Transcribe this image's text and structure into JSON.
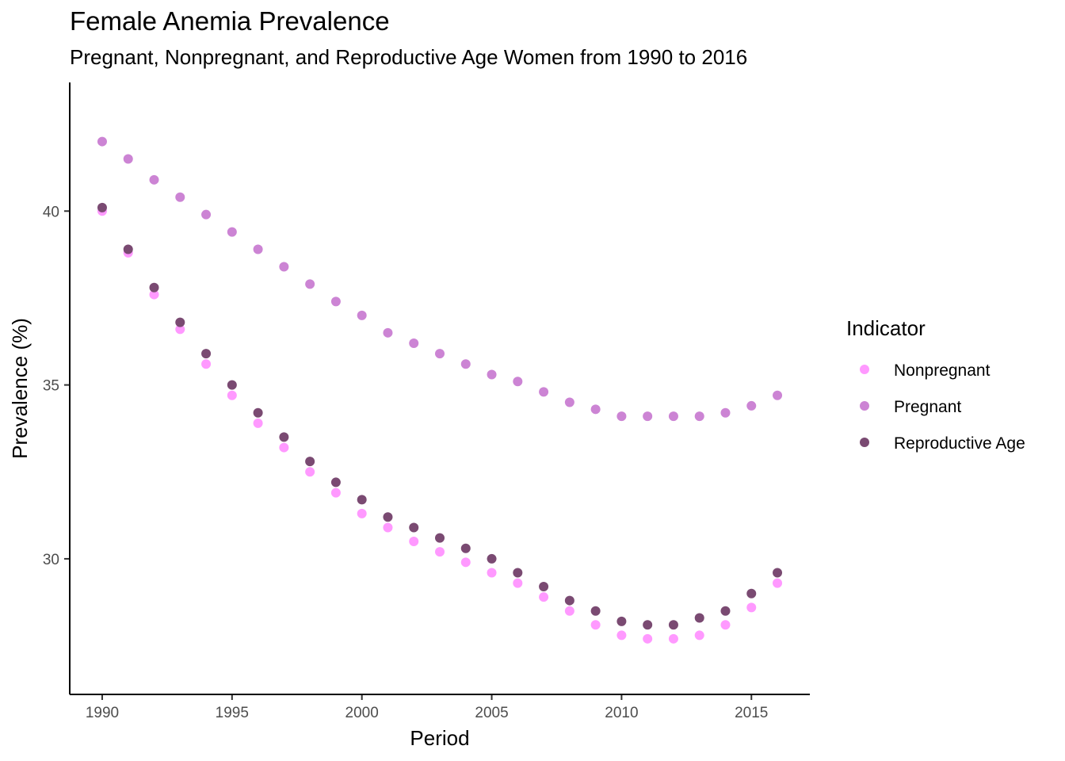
{
  "chart_data": {
    "type": "scatter",
    "title": "Female Anemia Prevalence",
    "subtitle": "Pregnant, Nonpregnant, and Reproductive Age Women from 1990 to 2016",
    "xlabel": "Period",
    "ylabel": "Prevalence (%)",
    "xlim": [
      1988.75,
      2017.25
    ],
    "ylim": [
      26.1,
      43.7
    ],
    "x_ticks": [
      1990,
      1995,
      2000,
      2005,
      2010,
      2015
    ],
    "y_ticks": [
      30,
      35,
      40
    ],
    "grid": false,
    "legend": {
      "title": "Indicator",
      "position": "right"
    },
    "x": [
      1990,
      1991,
      1992,
      1993,
      1994,
      1995,
      1996,
      1997,
      1998,
      1999,
      2000,
      2001,
      2002,
      2003,
      2004,
      2005,
      2006,
      2007,
      2008,
      2009,
      2010,
      2011,
      2012,
      2013,
      2014,
      2015,
      2016
    ],
    "series": [
      {
        "name": "Nonpregnant",
        "color": "#ff99ff",
        "values": [
          40.0,
          38.8,
          37.6,
          36.6,
          35.6,
          34.7,
          33.9,
          33.2,
          32.5,
          31.9,
          31.3,
          30.9,
          30.5,
          30.2,
          29.9,
          29.6,
          29.3,
          28.9,
          28.5,
          28.1,
          27.8,
          27.7,
          27.7,
          27.8,
          28.1,
          28.6,
          29.3
        ]
      },
      {
        "name": "Pregnant",
        "color": "#cc84d4",
        "values": [
          42.0,
          41.5,
          40.9,
          40.4,
          39.9,
          39.4,
          38.9,
          38.4,
          37.9,
          37.4,
          37.0,
          36.5,
          36.2,
          35.9,
          35.6,
          35.3,
          35.1,
          34.8,
          34.5,
          34.3,
          34.1,
          34.1,
          34.1,
          34.1,
          34.2,
          34.4,
          34.7
        ]
      },
      {
        "name": "Reproductive Age",
        "color": "#7a4a72",
        "values": [
          40.1,
          38.9,
          37.8,
          36.8,
          35.9,
          35.0,
          34.2,
          33.5,
          32.8,
          32.2,
          31.7,
          31.2,
          30.9,
          30.6,
          30.3,
          30.0,
          29.6,
          29.2,
          28.8,
          28.5,
          28.2,
          28.1,
          28.1,
          28.3,
          28.5,
          29.0,
          29.6
        ]
      }
    ]
  }
}
